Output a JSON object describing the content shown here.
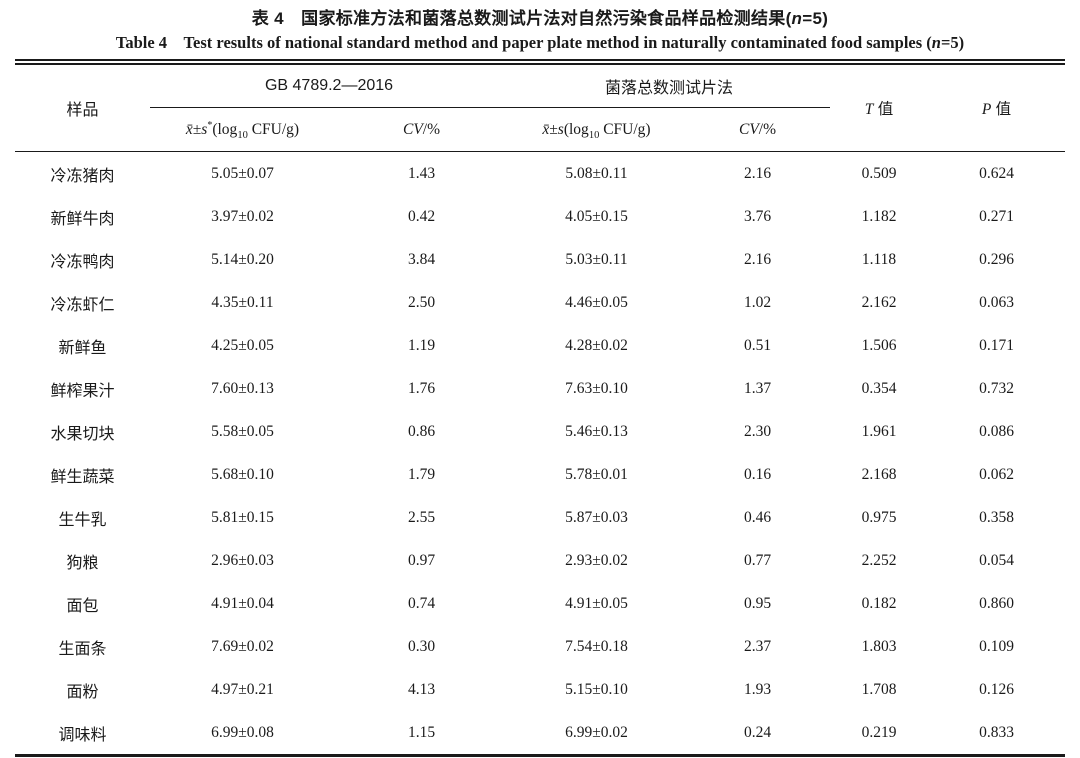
{
  "title": {
    "zh": {
      "pre": "表 4 国家标准方法和菌落总数测试片法对自然污染食品样品检测结果(",
      "var": "n",
      "post": "=5)"
    },
    "en": {
      "pre": "Table 4 Test results of national standard method and paper plate method in naturally contaminated food samples (",
      "var": "n",
      "post": "=5)"
    }
  },
  "table": {
    "col_sample": "样品",
    "group_gb": "GB 4789.2—2016",
    "group_paperplate": "菌落总数测试片法",
    "sub_mean_gb": {
      "sym": "x̄±s",
      "sup": "*",
      "pre": "(log",
      "sub": "10",
      "post": " CFU/g)"
    },
    "sub_mean_pp": {
      "sym": "x̄±s",
      "sup": "",
      "pre": "(log",
      "sub": "10",
      "post": " CFU/g)"
    },
    "sub_cv": {
      "sym": "CV",
      "rest": "/%"
    },
    "col_t": {
      "sym": "T",
      "rest": " 值"
    },
    "col_p": {
      "sym": "P",
      "rest": " 值"
    },
    "field_order": [
      "sample",
      "gb_mean",
      "gb_cv",
      "pp_mean",
      "pp_cv",
      "t",
      "p"
    ],
    "rows": [
      {
        "sample": "冷冻猪肉",
        "gb_mean": "5.05±0.07",
        "gb_cv": "1.43",
        "pp_mean": "5.08±0.11",
        "pp_cv": "2.16",
        "t": "0.509",
        "p": "0.624"
      },
      {
        "sample": "新鲜牛肉",
        "gb_mean": "3.97±0.02",
        "gb_cv": "0.42",
        "pp_mean": "4.05±0.15",
        "pp_cv": "3.76",
        "t": "1.182",
        "p": "0.271"
      },
      {
        "sample": "冷冻鸭肉",
        "gb_mean": "5.14±0.20",
        "gb_cv": "3.84",
        "pp_mean": "5.03±0.11",
        "pp_cv": "2.16",
        "t": "1.118",
        "p": "0.296"
      },
      {
        "sample": "冷冻虾仁",
        "gb_mean": "4.35±0.11",
        "gb_cv": "2.50",
        "pp_mean": "4.46±0.05",
        "pp_cv": "1.02",
        "t": "2.162",
        "p": "0.063"
      },
      {
        "sample": "新鲜鱼",
        "gb_mean": "4.25±0.05",
        "gb_cv": "1.19",
        "pp_mean": "4.28±0.02",
        "pp_cv": "0.51",
        "t": "1.506",
        "p": "0.171"
      },
      {
        "sample": "鲜榨果汁",
        "gb_mean": "7.60±0.13",
        "gb_cv": "1.76",
        "pp_mean": "7.63±0.10",
        "pp_cv": "1.37",
        "t": "0.354",
        "p": "0.732"
      },
      {
        "sample": "水果切块",
        "gb_mean": "5.58±0.05",
        "gb_cv": "0.86",
        "pp_mean": "5.46±0.13",
        "pp_cv": "2.30",
        "t": "1.961",
        "p": "0.086"
      },
      {
        "sample": "鲜生蔬菜",
        "gb_mean": "5.68±0.10",
        "gb_cv": "1.79",
        "pp_mean": "5.78±0.01",
        "pp_cv": "0.16",
        "t": "2.168",
        "p": "0.062"
      },
      {
        "sample": "生牛乳",
        "gb_mean": "5.81±0.15",
        "gb_cv": "2.55",
        "pp_mean": "5.87±0.03",
        "pp_cv": "0.46",
        "t": "0.975",
        "p": "0.358"
      },
      {
        "sample": "狗粮",
        "gb_mean": "2.96±0.03",
        "gb_cv": "0.97",
        "pp_mean": "2.93±0.02",
        "pp_cv": "0.77",
        "t": "2.252",
        "p": "0.054"
      },
      {
        "sample": "面包",
        "gb_mean": "4.91±0.04",
        "gb_cv": "0.74",
        "pp_mean": "4.91±0.05",
        "pp_cv": "0.95",
        "t": "0.182",
        "p": "0.860"
      },
      {
        "sample": "生面条",
        "gb_mean": "7.69±0.02",
        "gb_cv": "0.30",
        "pp_mean": "7.54±0.18",
        "pp_cv": "2.37",
        "t": "1.803",
        "p": "0.109"
      },
      {
        "sample": "面粉",
        "gb_mean": "4.97±0.21",
        "gb_cv": "4.13",
        "pp_mean": "5.15±0.10",
        "pp_cv": "1.93",
        "t": "1.708",
        "p": "0.126"
      },
      {
        "sample": "调味料",
        "gb_mean": "6.99±0.08",
        "gb_cv": "1.15",
        "pp_mean": "6.99±0.02",
        "pp_cv": "0.24",
        "t": "0.219",
        "p": "0.833"
      }
    ]
  }
}
